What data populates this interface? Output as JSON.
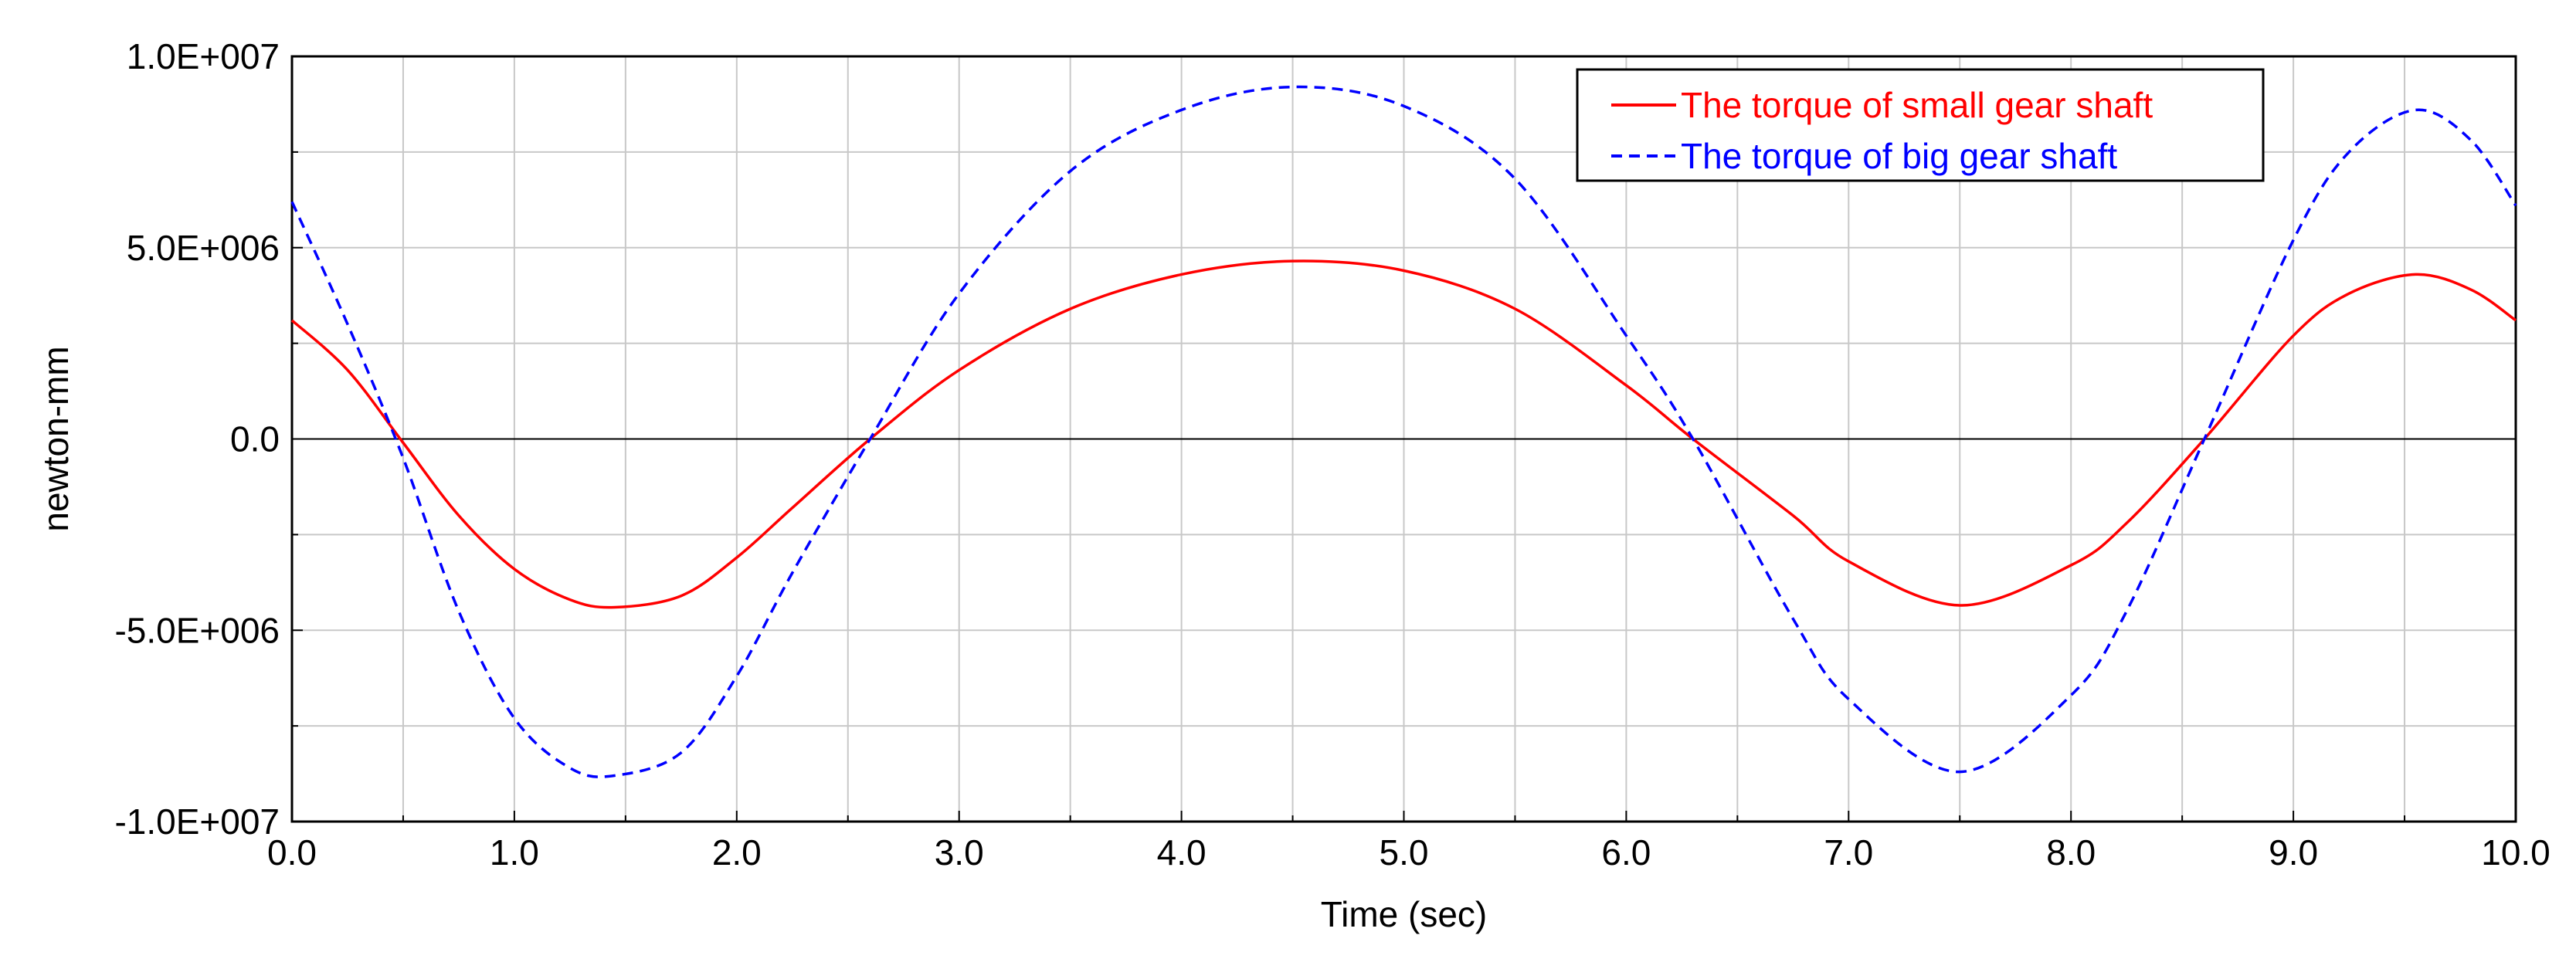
{
  "chart_data": {
    "type": "line",
    "title": "",
    "xlabel": "Time (sec)",
    "ylabel": "newton-mm",
    "xlim": [
      0.0,
      10.0
    ],
    "ylim": [
      -10000000,
      10000000
    ],
    "x_ticks": [
      0,
      1,
      2,
      3,
      4,
      5,
      6,
      7,
      8,
      9,
      10
    ],
    "x_tick_labels": [
      "0.0",
      "1.0",
      "2.0",
      "3.0",
      "4.0",
      "5.0",
      "6.0",
      "7.0",
      "8.0",
      "9.0",
      "10.0"
    ],
    "y_ticks": [
      10000000,
      5000000,
      0,
      -5000000,
      -10000000
    ],
    "y_tick_labels": [
      "1.0E+007",
      "5.0E+006",
      "0.0",
      "-5.0E+006",
      "-1.0E+007"
    ],
    "grid": true,
    "legend_position": "top-right",
    "series": [
      {
        "name": "The torque of small gear shaft",
        "color": "#ff0000",
        "style": "solid",
        "x": [
          0.0,
          0.25,
          0.5,
          0.75,
          1.0,
          1.25,
          1.45,
          1.75,
          2.0,
          2.25,
          2.6,
          3.0,
          3.5,
          4.0,
          4.5,
          5.0,
          5.5,
          6.0,
          6.3,
          6.75,
          7.0,
          7.5,
          8.0,
          8.25,
          8.6,
          9.0,
          9.25,
          9.55,
          9.8,
          10.0
        ],
        "y": [
          3100000,
          1800000,
          -100000,
          -2000000,
          -3400000,
          -4200000,
          -4400000,
          -4100000,
          -3100000,
          -1800000,
          0,
          1800000,
          3400000,
          4300000,
          4650000,
          4400000,
          3400000,
          1400000,
          0,
          -2000000,
          -3200000,
          -4350000,
          -3300000,
          -2200000,
          0,
          2700000,
          3800000,
          4300000,
          3900000,
          3100000
        ]
      },
      {
        "name": "The torque of big gear shaft",
        "color": "#0000ff",
        "style": "dashed",
        "x": [
          0.0,
          0.25,
          0.5,
          0.75,
          1.0,
          1.25,
          1.45,
          1.75,
          2.0,
          2.25,
          2.6,
          3.0,
          3.5,
          4.0,
          4.5,
          5.0,
          5.5,
          6.0,
          6.3,
          6.75,
          7.0,
          7.5,
          8.0,
          8.25,
          8.6,
          9.0,
          9.25,
          9.55,
          9.8,
          10.0
        ],
        "y": [
          6200000,
          3000000,
          -500000,
          -4500000,
          -7300000,
          -8600000,
          -8800000,
          -8200000,
          -6200000,
          -3500000,
          0,
          3800000,
          7000000,
          8600000,
          9200000,
          8700000,
          6800000,
          2700000,
          0,
          -4700000,
          -6800000,
          -8700000,
          -6700000,
          -4500000,
          0,
          5200000,
          7500000,
          8600000,
          7800000,
          6100000
        ]
      }
    ]
  }
}
